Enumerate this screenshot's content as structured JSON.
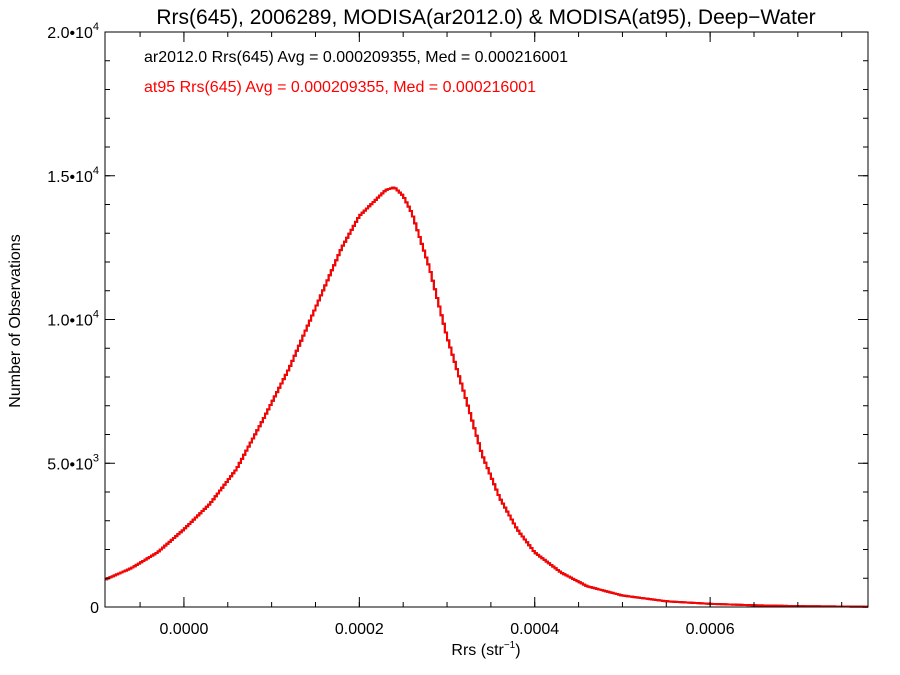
{
  "chart_data": {
    "type": "line",
    "step": true,
    "title": "Rrs(645), 2006289, MODISA(ar2012.0) & MODISA(at95), Deep−Water",
    "xlabel_base": "Rrs (str",
    "xlabel_sup": "−1",
    "xlabel_end": ")",
    "ylabel": "Number of Observations",
    "xlim": [
      -9e-05,
      0.00078
    ],
    "ylim": [
      0,
      20000
    ],
    "x_ticks": [
      {
        "value": 0.0,
        "label": "0.0000"
      },
      {
        "value": 0.0002,
        "label": "0.0002"
      },
      {
        "value": 0.0004,
        "label": "0.0004"
      },
      {
        "value": 0.0006,
        "label": "0.0006"
      }
    ],
    "y_ticks": [
      {
        "value": 0,
        "base": "0",
        "exp": ""
      },
      {
        "value": 5000,
        "base": "5.0•10",
        "exp": "3"
      },
      {
        "value": 10000,
        "base": "1.0•10",
        "exp": "4"
      },
      {
        "value": 15000,
        "base": "1.5•10",
        "exp": "4"
      },
      {
        "value": 20000,
        "base": "2.0•10",
        "exp": "4"
      }
    ],
    "annotations": [
      {
        "text": "ar2012.0 Rrs(645) Avg = 0.000209355, Med = 0.000216001",
        "color": "#000000"
      },
      {
        "text": "at95 Rrs(645) Avg = 0.000209355, Med = 0.000216001",
        "color": "#ff0000"
      }
    ],
    "series": [
      {
        "name": "ar2012.0",
        "color": "#000000",
        "x": [
          -9e-05,
          -6e-05,
          -3e-05,
          0.0,
          3e-05,
          6e-05,
          9e-05,
          0.00012,
          0.00015,
          0.00018,
          0.0002,
          0.00022,
          0.00023,
          0.00024,
          0.00025,
          0.00026,
          0.00028,
          0.0003,
          0.00032,
          0.00034,
          0.00036,
          0.00038,
          0.0004,
          0.00043,
          0.00046,
          0.0005,
          0.00055,
          0.0006,
          0.00065,
          0.0007,
          0.00078
        ],
        "values": [
          950,
          1350,
          1900,
          2700,
          3600,
          4800,
          6500,
          8300,
          10400,
          12500,
          13600,
          14200,
          14500,
          14600,
          14300,
          13700,
          11800,
          9400,
          7400,
          5300,
          3800,
          2700,
          1900,
          1200,
          720,
          400,
          200,
          110,
          60,
          30,
          10
        ]
      },
      {
        "name": "at95",
        "color": "#ff0000",
        "x": [
          -9e-05,
          -6e-05,
          -3e-05,
          0.0,
          3e-05,
          6e-05,
          9e-05,
          0.00012,
          0.00015,
          0.00018,
          0.0002,
          0.00022,
          0.00023,
          0.00024,
          0.00025,
          0.00026,
          0.00028,
          0.0003,
          0.00032,
          0.00034,
          0.00036,
          0.00038,
          0.0004,
          0.00043,
          0.00046,
          0.0005,
          0.00055,
          0.0006,
          0.00065,
          0.0007,
          0.00078
        ],
        "values": [
          950,
          1350,
          1900,
          2700,
          3600,
          4800,
          6500,
          8300,
          10400,
          12500,
          13600,
          14200,
          14500,
          14600,
          14300,
          13700,
          11800,
          9400,
          7400,
          5300,
          3800,
          2700,
          1900,
          1200,
          720,
          400,
          200,
          110,
          60,
          30,
          10
        ]
      }
    ],
    "grid": false,
    "legend": "top-left"
  }
}
